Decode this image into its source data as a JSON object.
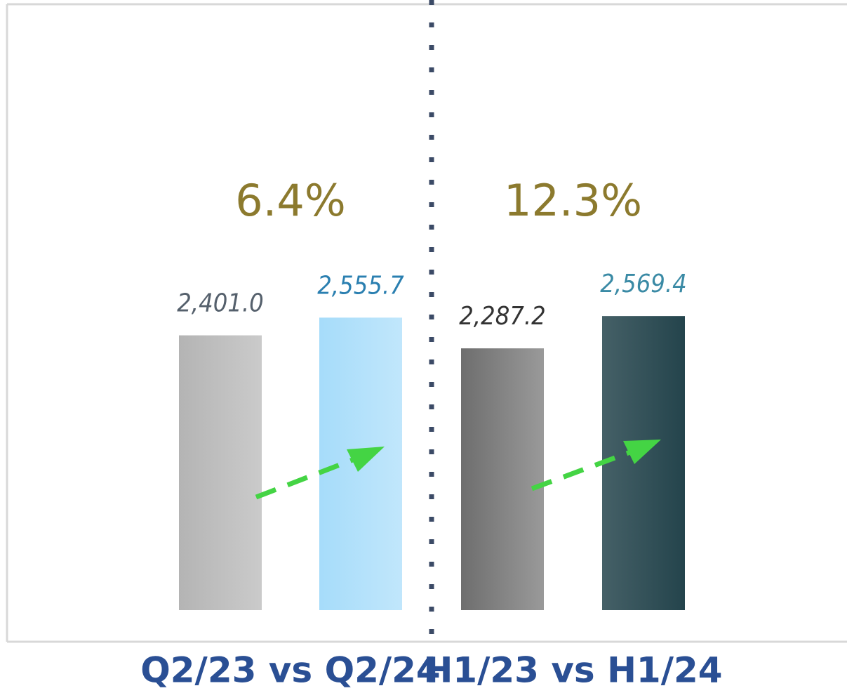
{
  "chart_data": [
    {
      "type": "bar",
      "title": "Q2/23 vs Q2/24",
      "annotation": "6.4%",
      "values": [
        2401.0,
        2555.7
      ],
      "value_labels": [
        "2,401.0",
        "2,555.7"
      ],
      "colors": [
        "#b4b4b4",
        "#a6dcfa"
      ],
      "label_colors": [
        "#55606c",
        "#2a7fb0"
      ],
      "ylim": [
        0,
        5300
      ]
    },
    {
      "type": "bar",
      "title": "H1/23 vs H1/24",
      "annotation": "12.3%",
      "values": [
        2287.2,
        2569.4
      ],
      "value_labels": [
        "2,287.2",
        "2,569.4"
      ],
      "colors": [
        "#6e6e6e",
        "#24444c"
      ],
      "label_colors": [
        "#333333",
        "#3a8aa5"
      ],
      "ylim": [
        0,
        5300
      ]
    }
  ]
}
